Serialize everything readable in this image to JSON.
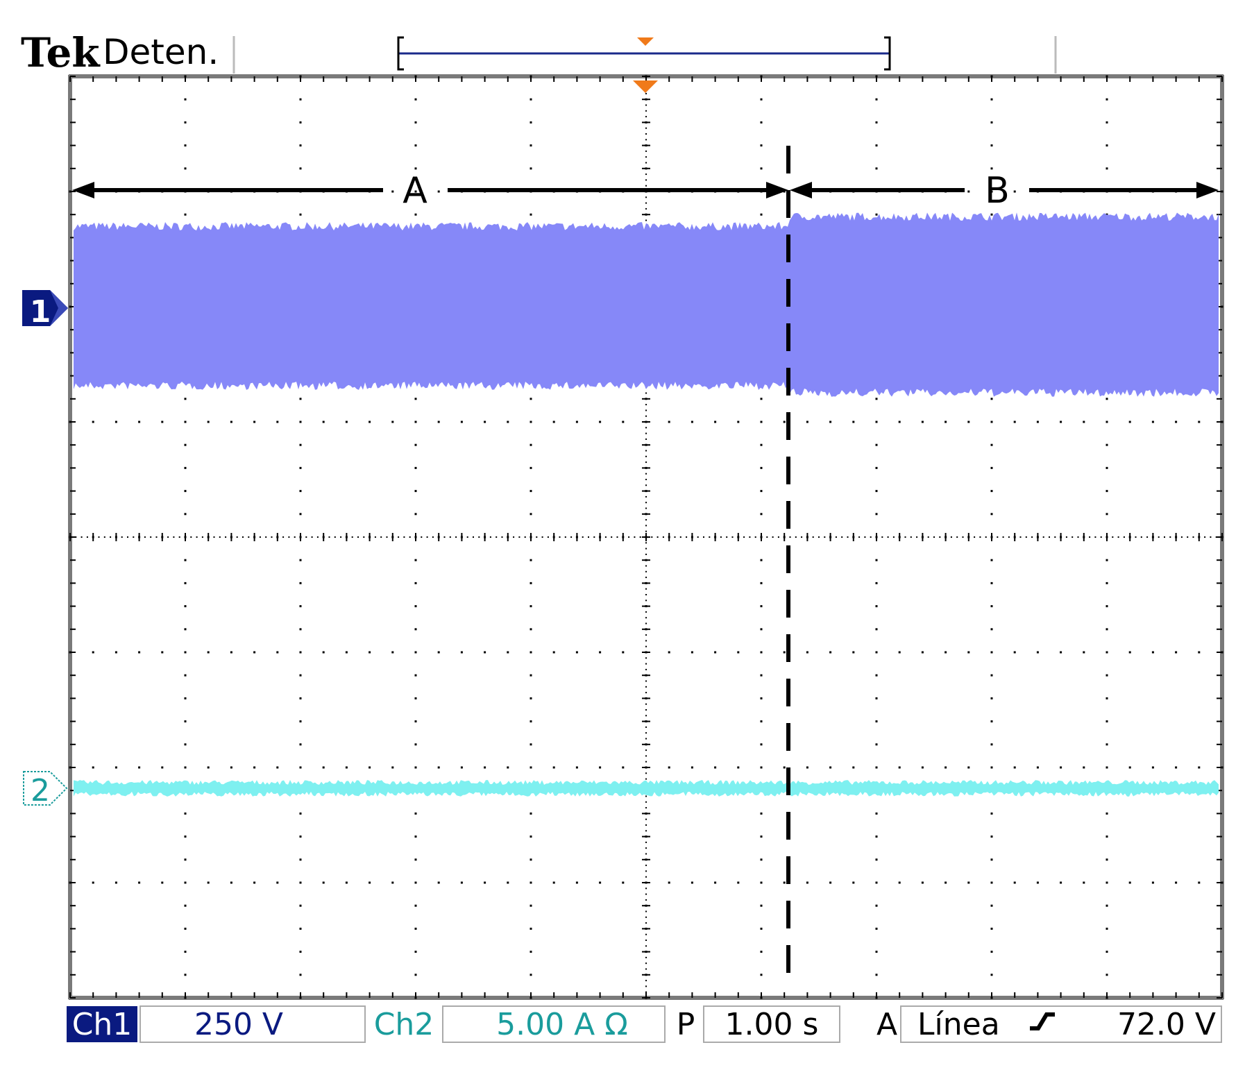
{
  "header": {
    "brand": "Tek",
    "status": "Deten."
  },
  "channels": {
    "ch1": {
      "marker": "1",
      "color": "#8688f8",
      "dark": "#0a1a80"
    },
    "ch2": {
      "marker": "2",
      "color": "#7ef0f0",
      "dark": "#1a9c9c"
    }
  },
  "annotations": {
    "region_a": "A",
    "region_b": "B"
  },
  "bottom_bar": {
    "ch1_label": "Ch1",
    "ch1_scale": "250 V",
    "ch2_label": "Ch2",
    "ch2_scale": "5.00 A Ω",
    "time_prefix": "P",
    "timebase": "1.00 s",
    "trigger_prefix": "A",
    "trigger_source": "Línea",
    "trigger_level": "72.0 V"
  },
  "colors": {
    "trigger_marker": "#f07a1a",
    "record_bar": "#1a2a8a",
    "grid": "#000000"
  }
}
